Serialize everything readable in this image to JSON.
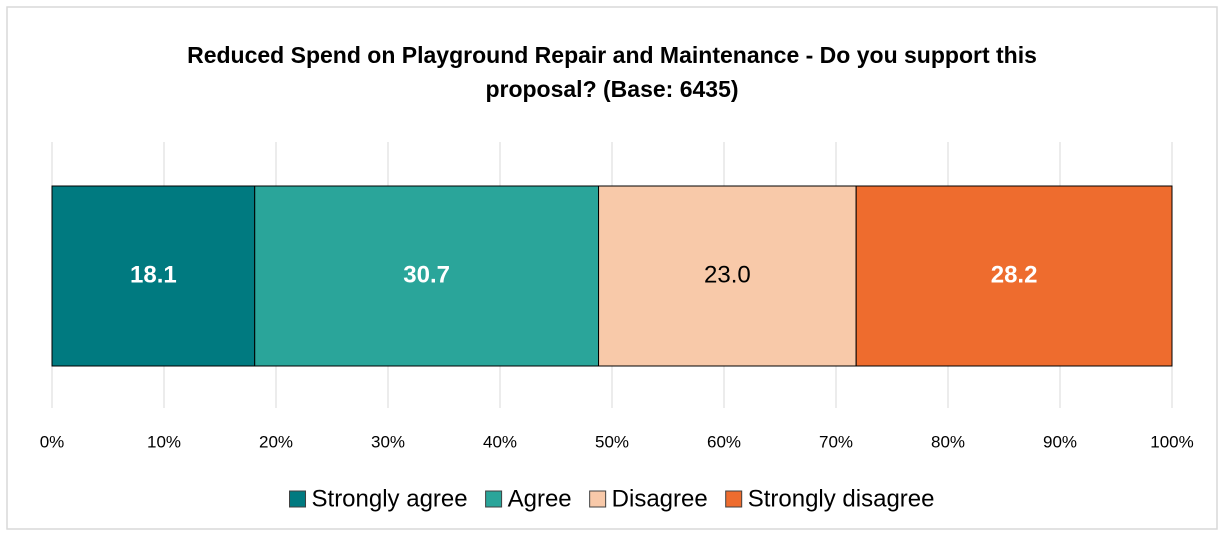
{
  "chart_data": {
    "type": "stacked_bar_horizontal",
    "title": "Reduced Spend on Playground Repair and Maintenance -  Do you support this proposal? (Base: 6435)",
    "series": [
      {
        "name": "Strongly agree",
        "color": "#007a80",
        "values": [
          18.1
        ]
      },
      {
        "name": "Agree",
        "color": "#2aa59a",
        "values": [
          30.7
        ]
      },
      {
        "name": "Disagree",
        "color": "#f8c9a9",
        "values": [
          23
        ],
        "value_labels": [
          "23.0"
        ]
      },
      {
        "name": "Strongly disagree",
        "color": "#ee6c2e",
        "values": [
          28.2
        ]
      }
    ],
    "xlim": [
      0,
      100
    ],
    "xticks": [
      {
        "value": 0,
        "label": "0%"
      },
      {
        "value": 10,
        "label": "10%"
      },
      {
        "value": 20,
        "label": "20%"
      },
      {
        "value": 30,
        "label": "30%"
      },
      {
        "value": 40,
        "label": "40%"
      },
      {
        "value": 50,
        "label": "50%"
      },
      {
        "value": 60,
        "label": "60%"
      },
      {
        "value": 70,
        "label": "70%"
      },
      {
        "value": 80,
        "label": "80%"
      },
      {
        "value": 90,
        "label": "90%"
      },
      {
        "value": 100,
        "label": "100%"
      }
    ],
    "grid": true,
    "legend": "bottom"
  }
}
